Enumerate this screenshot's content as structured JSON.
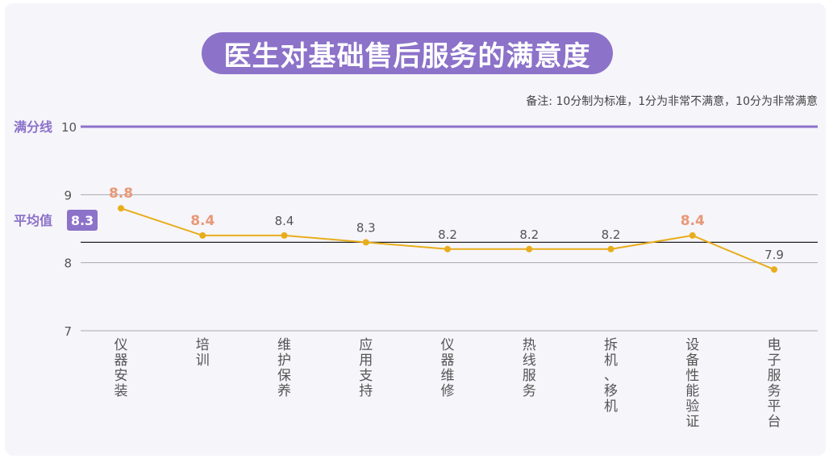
{
  "title": "医生对基础售后服务的满意度",
  "note": "备注: 10分制为标准，1分为非常不满意，10分为非常满意",
  "colors": {
    "accent": "#8c72c9",
    "line": "#e8ad1a",
    "highlight": "#e89876",
    "label": "#555555",
    "grid": "#aaaaaa",
    "average_line": "#222222"
  },
  "chart_data": {
    "type": "line",
    "categories": [
      "仪器安装",
      "培训",
      "维护保养",
      "应用支持",
      "仪器维修",
      "热线服务",
      "拆机、移机",
      "设备性能验证",
      "电子服务平台"
    ],
    "values": [
      8.8,
      8.4,
      8.4,
      8.3,
      8.2,
      8.2,
      8.2,
      8.4,
      7.9
    ],
    "value_labels": [
      "8.8",
      "8.4",
      "8.4",
      "8.3",
      "8.2",
      "8.2",
      "8.2",
      "8.4",
      "7.9"
    ],
    "highlighted": [
      true,
      true,
      false,
      false,
      false,
      false,
      false,
      true,
      false
    ],
    "y_ticks": [
      7,
      8,
      9
    ],
    "ylim": [
      7,
      10
    ],
    "full_line": {
      "label": "满分线",
      "value": 10,
      "value_label": "10"
    },
    "average_line": {
      "label": "平均值",
      "value": 8.3,
      "value_label": "8.3"
    },
    "grid": true
  }
}
